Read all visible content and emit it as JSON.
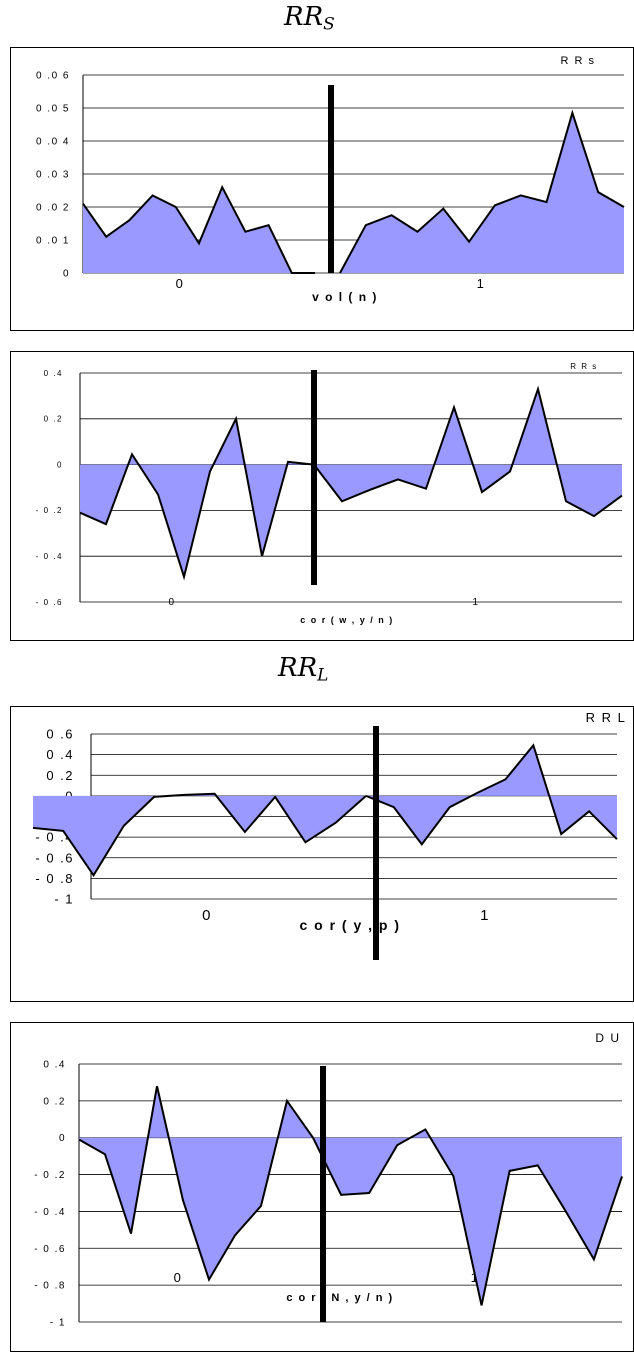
{
  "sections": [
    {
      "title_main": "RR",
      "title_sub": "S"
    },
    {
      "title_main": "RR",
      "title_sub": "L"
    }
  ],
  "chart_data": [
    {
      "type": "area",
      "legend": "R R s",
      "xlabel": "v o l ( n )",
      "x_group_labels": [
        "0",
        "1"
      ],
      "ylim": [
        0,
        0.06
      ],
      "yticks": [
        0,
        0.01,
        0.02,
        0.03,
        0.04,
        0.05,
        0.06
      ],
      "ytick_labels": [
        "0",
        "0 .0 1",
        "0 .0 2",
        "0 .0 3",
        "0 .0 4",
        "0 .0 5",
        "0 .0 6"
      ],
      "grid": true,
      "series_left": [
        0.021,
        0.011,
        0.016,
        0.0235,
        0.02,
        0.009,
        0.026,
        0.0125,
        0.0145,
        0.0,
        0.0
      ],
      "series_right": [
        0.0,
        0.0145,
        0.0175,
        0.0125,
        0.0195,
        0.0095,
        0.0205,
        0.0235,
        0.0215,
        0.0485,
        0.0245,
        0.02
      ]
    },
    {
      "type": "area",
      "legend": "R R s",
      "xlabel": "c o r ( w  , y / n )",
      "x_group_labels": [
        "0",
        "1"
      ],
      "ylim": [
        -0.6,
        0.4
      ],
      "yticks": [
        -0.6,
        -0.4,
        -0.2,
        0,
        0.2,
        0.4
      ],
      "ytick_labels": [
        "- 0 .6",
        "- 0 .4",
        "- 0 .2",
        "0",
        "0 .2",
        "0 .4"
      ],
      "grid": true,
      "series_left": [
        -0.21,
        -0.26,
        0.045,
        -0.13,
        -0.49,
        -0.03,
        0.2,
        -0.4,
        0.012,
        0.0
      ],
      "series_right": [
        0.0,
        -0.16,
        -0.11,
        -0.065,
        -0.105,
        0.25,
        -0.12,
        -0.03,
        0.33,
        -0.16,
        -0.225,
        -0.135
      ]
    },
    {
      "type": "area",
      "legend": "R R L",
      "xlabel": "c o r ( y , p )",
      "x_group_labels": [
        "0",
        "1"
      ],
      "ylim": [
        -1,
        0.6
      ],
      "yticks": [
        -1,
        -0.8,
        -0.6,
        -0.4,
        -0.2,
        0,
        0.2,
        0.4,
        0.6
      ],
      "ytick_labels": [
        "- 1",
        "- 0 .8",
        "- 0 .6",
        "- 0 .4",
        "- 0 .2",
        "0",
        "0 .2",
        "0 .4",
        "0 .6"
      ],
      "grid": true,
      "series_left": [
        -0.31,
        -0.34,
        -0.77,
        -0.29,
        -0.01,
        0.01,
        0.02,
        -0.35,
        -0.01,
        -0.45,
        -0.26,
        0.0
      ],
      "series_right": [
        0.0,
        -0.11,
        -0.47,
        -0.11,
        0.03,
        0.16,
        0.49,
        -0.37,
        -0.15,
        -0.42
      ]
    },
    {
      "type": "area",
      "legend": "D U",
      "xlabel": "c o r ( N , y / n )",
      "x_group_labels": [
        "0",
        "1"
      ],
      "ylim": [
        -1,
        0.4
      ],
      "yticks": [
        -1,
        -0.8,
        -0.6,
        -0.4,
        -0.2,
        0,
        0.2,
        0.4
      ],
      "ytick_labels": [
        "- 1",
        "- 0 .8",
        "- 0 .6",
        "- 0 .4",
        "- 0 .2",
        "0",
        "0 .2",
        "0 .4"
      ],
      "grid": true,
      "series_left": [
        -0.01,
        -0.09,
        -0.52,
        0.28,
        -0.34,
        -0.77,
        -0.53,
        -0.37,
        0.2,
        0.0
      ],
      "series_right": [
        0.0,
        -0.31,
        -0.3,
        -0.04,
        0.045,
        -0.21,
        -0.91,
        -0.18,
        -0.15,
        -0.4,
        -0.66,
        -0.21
      ]
    }
  ]
}
